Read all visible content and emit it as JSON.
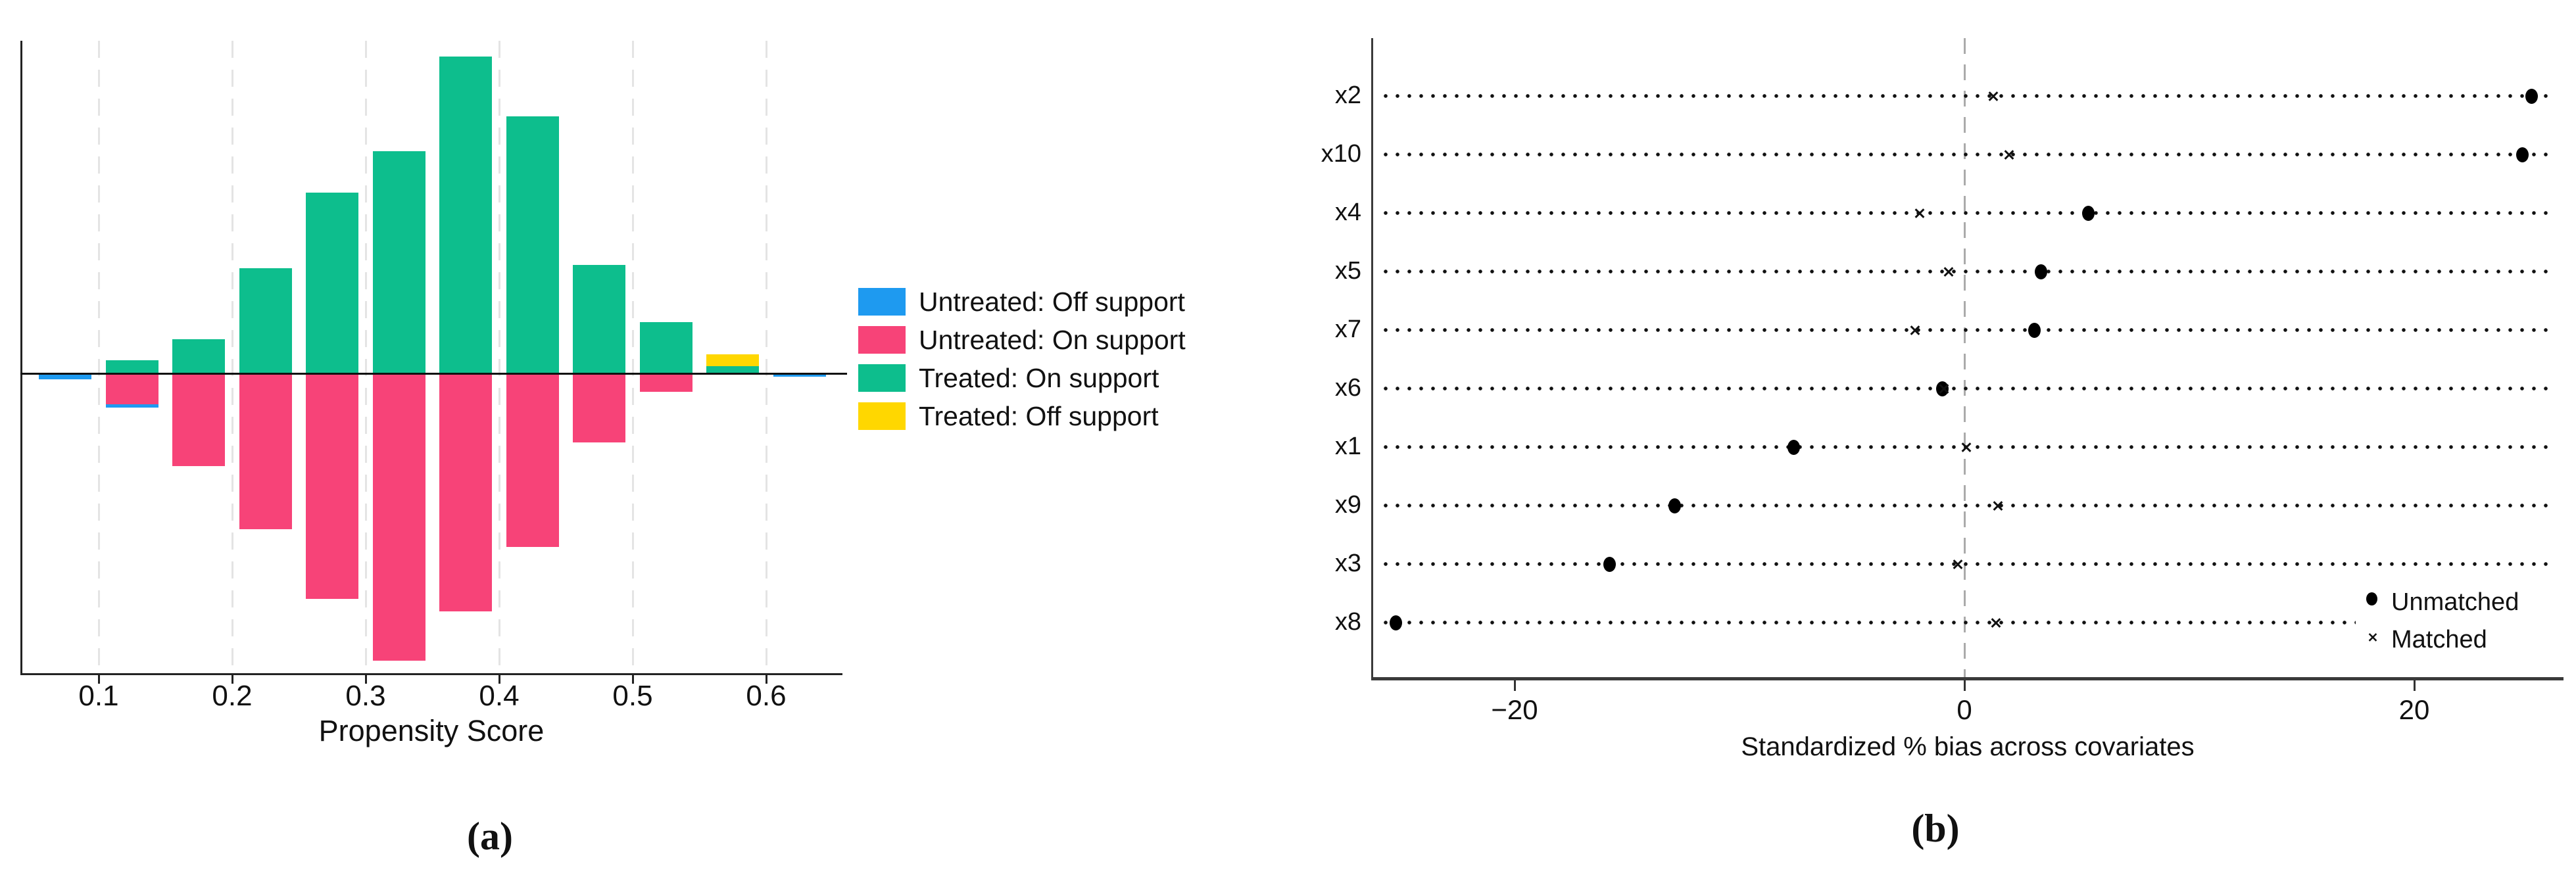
{
  "figure": {
    "caption_a": "(a)",
    "caption_b": "(b)"
  },
  "chart_data": [
    {
      "type": "bar",
      "subtype": "mirrored-stacked-histogram",
      "title": "",
      "xlabel": "Propensity Score",
      "ylabel": "",
      "xlim": [
        0.045,
        0.655
      ],
      "bin_width": 0.05,
      "grid": "vertical-dashed",
      "units_note": "bar heights in relative density units, tallest treated bar = 100; treated plotted above zero line, untreated below",
      "x_ticks": [
        {
          "value": 0.1,
          "label": "0.1"
        },
        {
          "value": 0.2,
          "label": "0.2"
        },
        {
          "value": 0.3,
          "label": "0.3"
        },
        {
          "value": 0.4,
          "label": "0.4"
        },
        {
          "value": 0.5,
          "label": "0.5"
        },
        {
          "value": 0.6,
          "label": "0.6"
        }
      ],
      "legend": [
        {
          "label": "Untreated: Off support",
          "color": "#1E9AF0",
          "key": "untreated_off"
        },
        {
          "label": "Untreated: On support",
          "color": "#F74378",
          "key": "untreated_on"
        },
        {
          "label": "Treated: On support",
          "color": "#0DBE8D",
          "key": "treated_on"
        },
        {
          "label": "Treated: Off support",
          "color": "#FFD700",
          "key": "treated_off"
        }
      ],
      "bins": [
        {
          "x_center": 0.075,
          "treated_on": 0,
          "treated_off": 0,
          "untreated_on": 0,
          "untreated_off": 2.1
        },
        {
          "x_center": 0.125,
          "treated_on": 4.0,
          "treated_off": 0,
          "untreated_on": 10.0,
          "untreated_off": 1.0
        },
        {
          "x_center": 0.175,
          "treated_on": 10.6,
          "treated_off": 0,
          "untreated_on": 29.5,
          "untreated_off": 0
        },
        {
          "x_center": 0.225,
          "treated_on": 33.0,
          "treated_off": 0,
          "untreated_on": 49.5,
          "untreated_off": 0
        },
        {
          "x_center": 0.275,
          "treated_on": 57.0,
          "treated_off": 0,
          "untreated_on": 71.5,
          "untreated_off": 0
        },
        {
          "x_center": 0.325,
          "treated_on": 70.0,
          "treated_off": 0,
          "untreated_on": 91.0,
          "untreated_off": 0
        },
        {
          "x_center": 0.375,
          "treated_on": 100.0,
          "treated_off": 0,
          "untreated_on": 75.5,
          "untreated_off": 0
        },
        {
          "x_center": 0.425,
          "treated_on": 81.0,
          "treated_off": 0,
          "untreated_on": 55.0,
          "untreated_off": 0
        },
        {
          "x_center": 0.475,
          "treated_on": 34.0,
          "treated_off": 0,
          "untreated_on": 22.0,
          "untreated_off": 0
        },
        {
          "x_center": 0.525,
          "treated_on": 16.0,
          "treated_off": 0,
          "untreated_on": 6.0,
          "untreated_off": 0
        },
        {
          "x_center": 0.575,
          "treated_on": 2.1,
          "treated_off": 3.7,
          "untreated_on": 0,
          "untreated_off": 0
        },
        {
          "x_center": 0.625,
          "treated_on": 0,
          "treated_off": 0,
          "untreated_on": 0,
          "untreated_off": 1.2
        }
      ]
    },
    {
      "type": "scatter",
      "subtype": "dot-plot",
      "title": "",
      "xlabel": "Standardized % bias across covariates",
      "xlim": [
        -26.5,
        26.8
      ],
      "zero_line": {
        "style": "dashed",
        "color": "#ababab",
        "at": 0
      },
      "x_ticks": [
        {
          "value": -20,
          "label": "−20"
        },
        {
          "value": 0,
          "label": "0"
        },
        {
          "value": 20,
          "label": "20"
        }
      ],
      "rows": [
        {
          "label": "x2",
          "unmatched": 25.2,
          "matched": 1.3
        },
        {
          "label": "x10",
          "unmatched": 24.8,
          "matched": 2.0
        },
        {
          "label": "x4",
          "unmatched": 5.5,
          "matched": -2.0
        },
        {
          "label": "x5",
          "unmatched": 3.4,
          "matched": -0.7
        },
        {
          "label": "x7",
          "unmatched": 3.1,
          "matched": -2.2
        },
        {
          "label": "x6",
          "unmatched": -1.0,
          "matched": -0.9
        },
        {
          "label": "x1",
          "unmatched": -7.6,
          "matched": 0.1
        },
        {
          "label": "x9",
          "unmatched": -12.9,
          "matched": 1.5
        },
        {
          "label": "x3",
          "unmatched": -15.8,
          "matched": -0.3
        },
        {
          "label": "x8",
          "unmatched": -25.3,
          "matched": 1.4
        }
      ],
      "legend": [
        {
          "label": "Unmatched",
          "marker": "dot"
        },
        {
          "label": "Matched",
          "marker": "x"
        }
      ],
      "marker_color": "#000000"
    }
  ]
}
